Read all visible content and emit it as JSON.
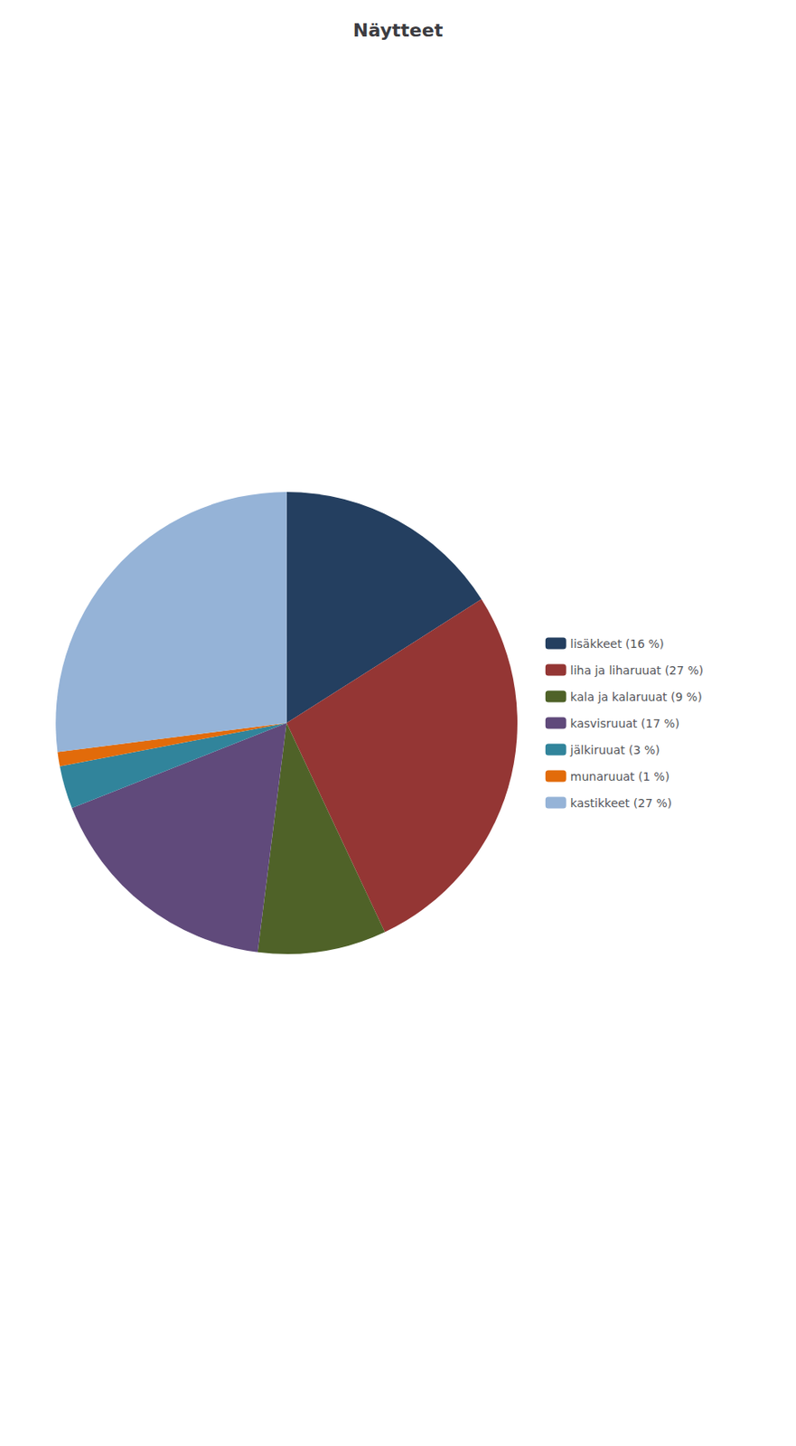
{
  "chart_data": {
    "type": "pie",
    "title": "Näytteet",
    "categories": [
      "lisäkkeet (16 %)",
      "liha ja liharuuat (27 %)",
      "kala ja kalaruuat (9 %)",
      "kasvisruuat (17 %)",
      "jälkiruuat (3 %)",
      "munaruuat (1 %)",
      "kastikkeet (27 %)"
    ],
    "values": [
      16,
      27,
      9,
      17,
      3,
      1,
      27
    ],
    "colors": [
      "#243f60",
      "#943634",
      "#4f6228",
      "#604a7b",
      "#31849b",
      "#e26b0a",
      "#95b3d7"
    ],
    "legend": "right"
  }
}
